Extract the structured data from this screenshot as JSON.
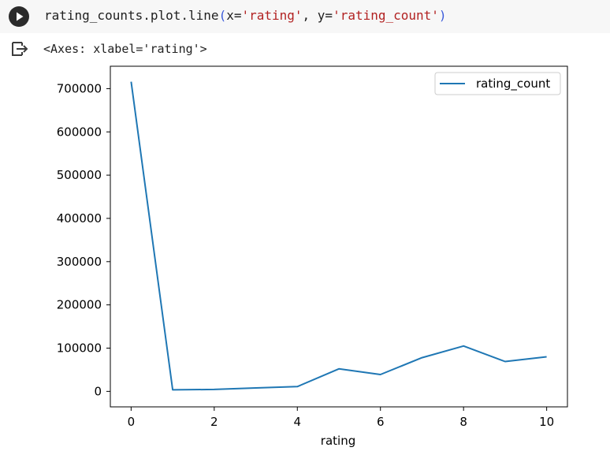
{
  "cell": {
    "code": {
      "prefix": "rating_counts.plot.line",
      "open_paren": "(",
      "arg1_name": "x=",
      "arg1_value": "'rating'",
      "separator": ", ",
      "arg2_name": "y=",
      "arg2_value": "'rating_count'",
      "close_paren": ")"
    },
    "run_icon": "play-icon",
    "output_icon": "output-arrow-icon",
    "output_repr": "<Axes: xlabel='rating'>"
  },
  "chart_data": {
    "type": "line",
    "title": "",
    "xlabel": "rating",
    "ylabel": "",
    "x": [
      0,
      1,
      2,
      3,
      4,
      5,
      6,
      7,
      8,
      9,
      10
    ],
    "series": [
      {
        "name": "rating_count",
        "color": "#1f77b4",
        "values": [
          716000,
          3500,
          4500,
          8000,
          11000,
          52000,
          39000,
          78000,
          105000,
          69000,
          80000
        ]
      }
    ],
    "xticks": [
      "0",
      "2",
      "4",
      "6",
      "8",
      "10"
    ],
    "yticks": [
      "0",
      "100000",
      "200000",
      "300000",
      "400000",
      "500000",
      "600000",
      "700000"
    ],
    "xlim": [
      -0.5,
      10.5
    ],
    "ylim": [
      -35800,
      751800
    ],
    "grid": false,
    "legend": "top-right"
  }
}
